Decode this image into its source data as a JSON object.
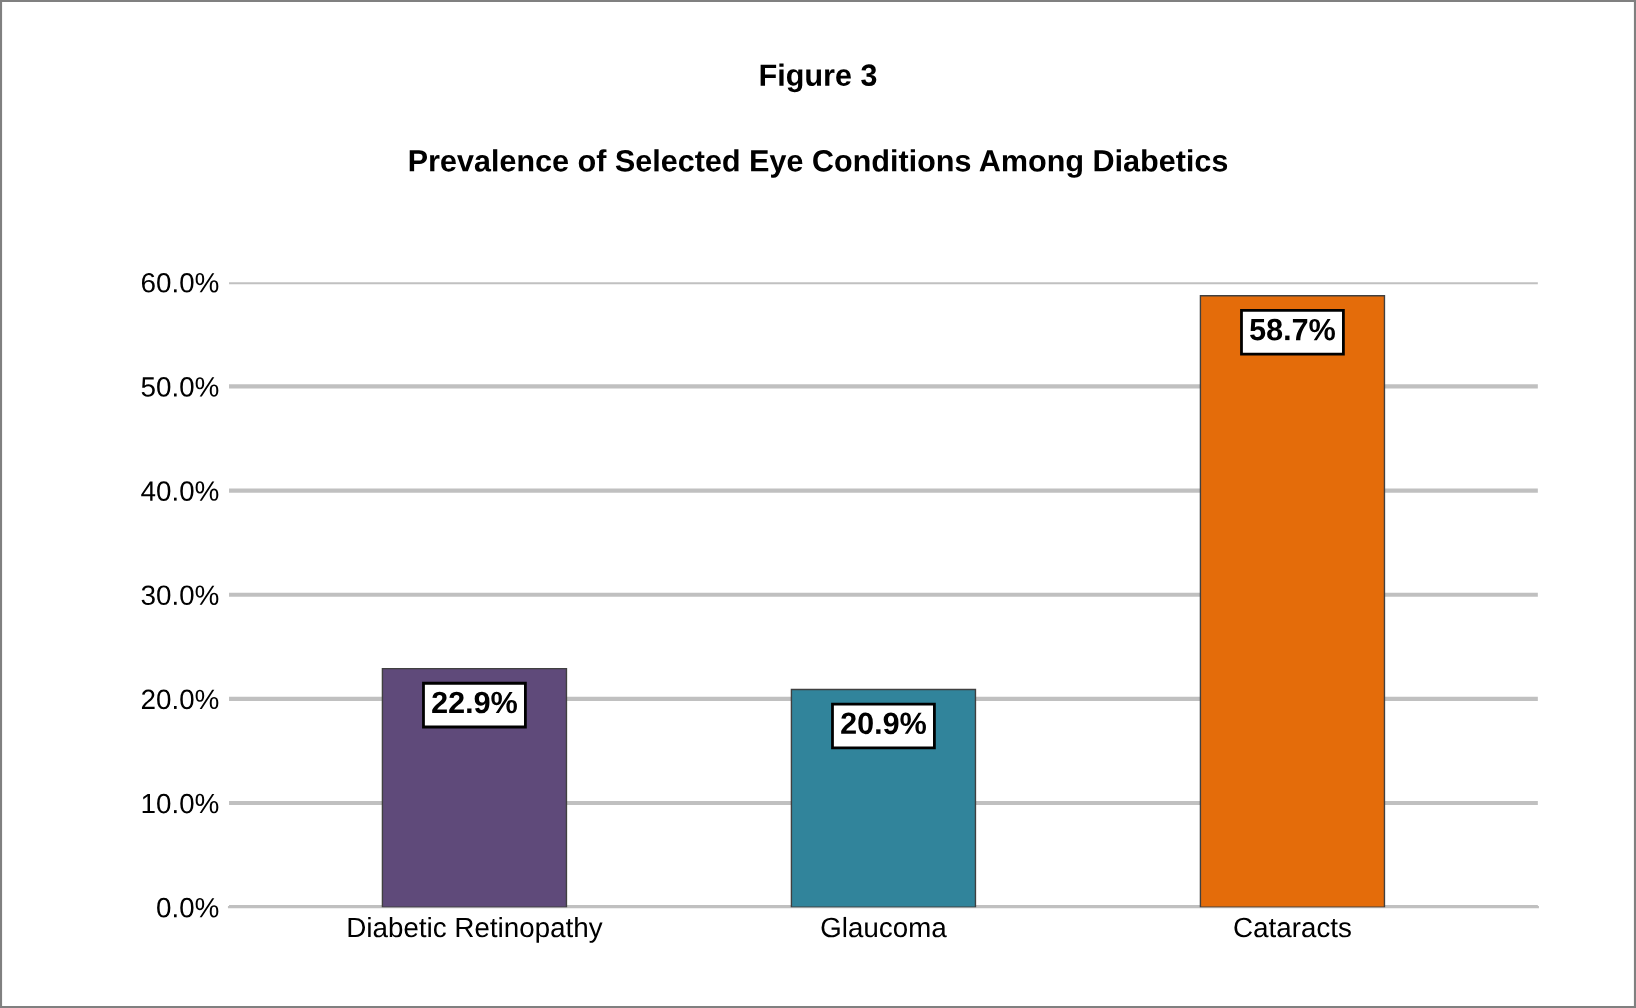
{
  "chart_data": {
    "type": "bar",
    "title": "Figure 3",
    "subtitle": "Prevalence of Selected Eye Conditions Among Diabetics",
    "categories": [
      "Diabetic Retinopathy",
      "Glaucoma",
      "Cataracts"
    ],
    "values": [
      22.9,
      20.9,
      58.7
    ],
    "colors": [
      "#5f4a7a",
      "#31849b",
      "#e46c0a"
    ],
    "value_labels": [
      "22.9%",
      "20.9%",
      "58.7%"
    ],
    "ylim": [
      0,
      60
    ],
    "yticks": [
      {
        "value": 0,
        "label": "0.0%"
      },
      {
        "value": 10,
        "label": "10.0%"
      },
      {
        "value": 20,
        "label": "20.0%"
      },
      {
        "value": 30,
        "label": "30.0%"
      },
      {
        "value": 40,
        "label": "40.0%"
      },
      {
        "value": 50,
        "label": "50.0%"
      },
      {
        "value": 60,
        "label": "60.0%"
      }
    ],
    "grid": "y"
  }
}
